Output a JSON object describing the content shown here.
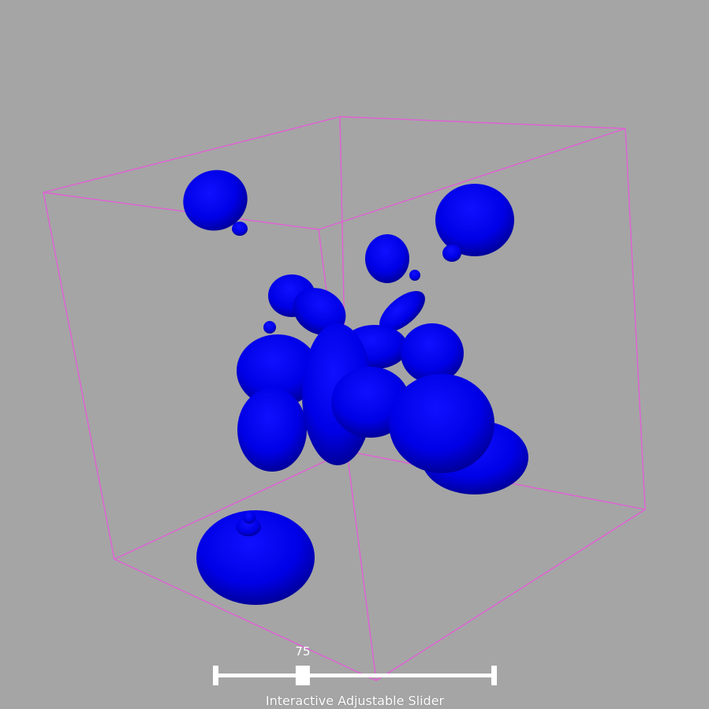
{
  "colors": {
    "background": "#a5a5a5",
    "isosurface": "#0000f0",
    "bounding_box": "#e25fd6",
    "slider": "#ffffff"
  },
  "slider": {
    "value_text": "75",
    "title": "Interactive Adjustable Slider",
    "value_fraction": 0.31
  }
}
